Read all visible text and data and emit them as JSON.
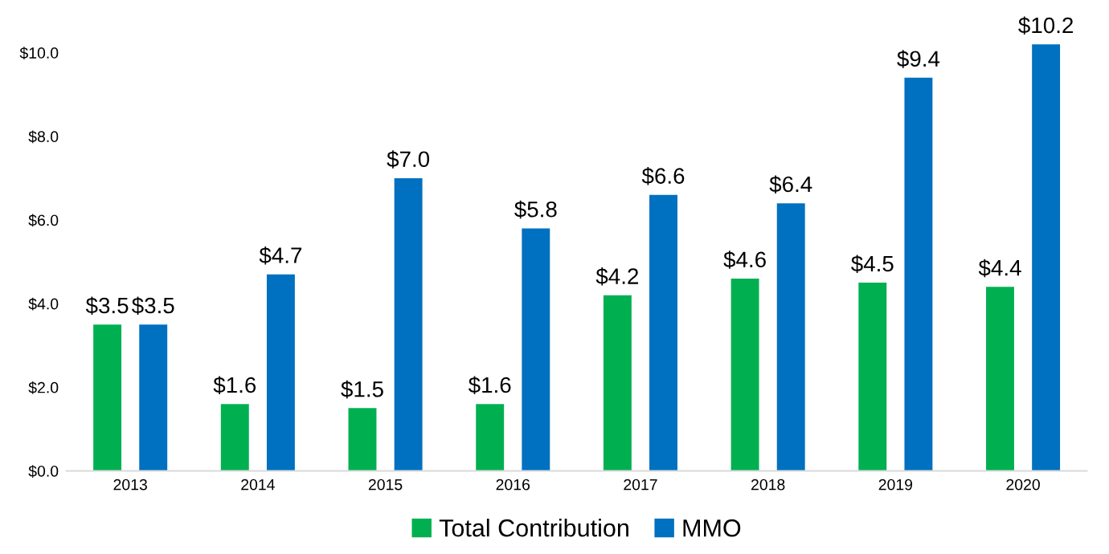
{
  "chart_data": {
    "type": "bar",
    "categories": [
      "2013",
      "2014",
      "2015",
      "2016",
      "2017",
      "2018",
      "2019",
      "2020"
    ],
    "series": [
      {
        "name": "Total Contribution",
        "color": "#00b050",
        "values": [
          3.5,
          1.6,
          1.5,
          1.6,
          4.2,
          4.6,
          4.5,
          4.4
        ],
        "value_labels": [
          "$3.5",
          "$1.6",
          "$1.5",
          "$1.6",
          "$4.2",
          "$4.6",
          "$4.5",
          "$4.4"
        ]
      },
      {
        "name": "MMO",
        "color": "#0070c0",
        "values": [
          3.5,
          4.7,
          7.0,
          5.8,
          6.6,
          6.4,
          9.4,
          10.2
        ],
        "value_labels": [
          "$3.5",
          "$4.7",
          "$7.0",
          "$5.8",
          "$6.6",
          "$6.4",
          "$9.4",
          "$10.2"
        ]
      }
    ],
    "ylim": [
      0,
      10.2
    ],
    "yticks": [
      {
        "value": 0,
        "label": "$0.0"
      },
      {
        "value": 2,
        "label": "$2.0"
      },
      {
        "value": 4,
        "label": "$4.0"
      },
      {
        "value": 6,
        "label": "$6.0"
      },
      {
        "value": 8,
        "label": "$8.0"
      },
      {
        "value": 10,
        "label": "$10.0"
      }
    ],
    "grid": false,
    "legend": "bottom"
  }
}
